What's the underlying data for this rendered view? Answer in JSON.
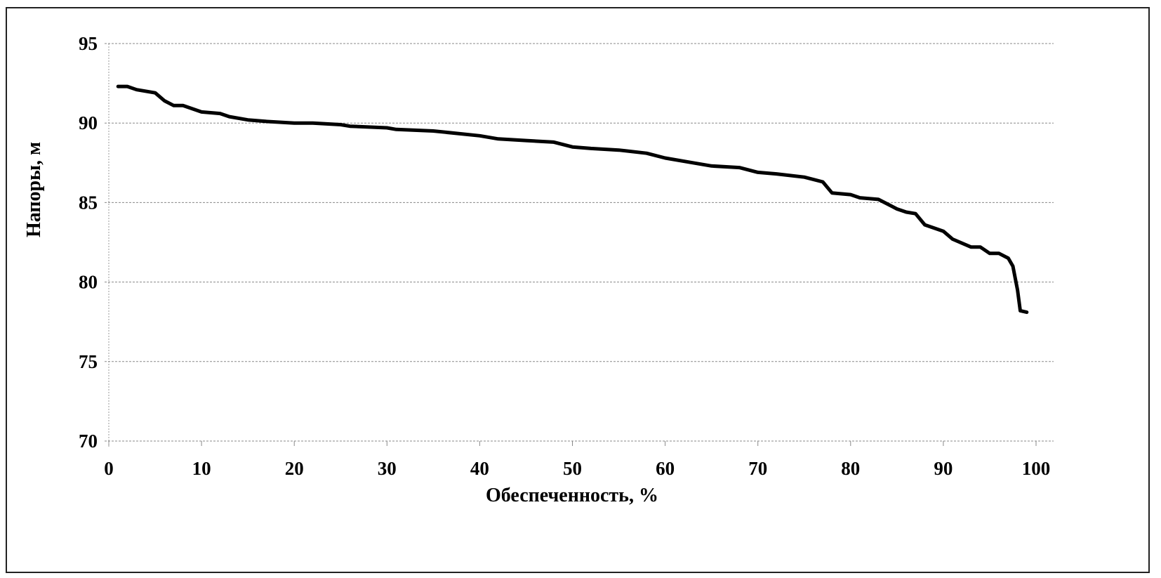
{
  "chart_data": {
    "type": "line",
    "title": "",
    "xlabel": "Обеспеченность, %",
    "ylabel": "Напоры, м",
    "xlim": [
      0,
      100
    ],
    "ylim": [
      70,
      95
    ],
    "xticks": [
      0,
      10,
      20,
      30,
      40,
      50,
      60,
      70,
      80,
      90,
      100
    ],
    "yticks": [
      70,
      75,
      80,
      85,
      90,
      95
    ],
    "grid": "horizontal",
    "legend": "none",
    "series": [
      {
        "name": "Напоры",
        "color": "#000000",
        "x": [
          1,
          2,
          3,
          5,
          6,
          7,
          8,
          10,
          12,
          13,
          15,
          17,
          20,
          22,
          25,
          26,
          30,
          31,
          35,
          40,
          42,
          45,
          48,
          50,
          52,
          55,
          58,
          60,
          63,
          65,
          68,
          70,
          72,
          75,
          77,
          78,
          80,
          81,
          83,
          85,
          86,
          87,
          88,
          90,
          91,
          93,
          94,
          95,
          96,
          97,
          97.5,
          98,
          98.3,
          99
        ],
        "y": [
          92.3,
          92.3,
          92.1,
          91.9,
          91.4,
          91.1,
          91.1,
          90.7,
          90.6,
          90.4,
          90.2,
          90.1,
          90.0,
          90.0,
          89.9,
          89.8,
          89.7,
          89.6,
          89.5,
          89.2,
          89.0,
          88.9,
          88.8,
          88.5,
          88.4,
          88.3,
          88.1,
          87.8,
          87.5,
          87.3,
          87.2,
          86.9,
          86.8,
          86.6,
          86.3,
          85.6,
          85.5,
          85.3,
          85.2,
          84.6,
          84.4,
          84.3,
          83.6,
          83.2,
          82.7,
          82.2,
          82.2,
          81.8,
          81.8,
          81.5,
          81.0,
          79.5,
          78.2,
          78.1
        ]
      }
    ]
  }
}
